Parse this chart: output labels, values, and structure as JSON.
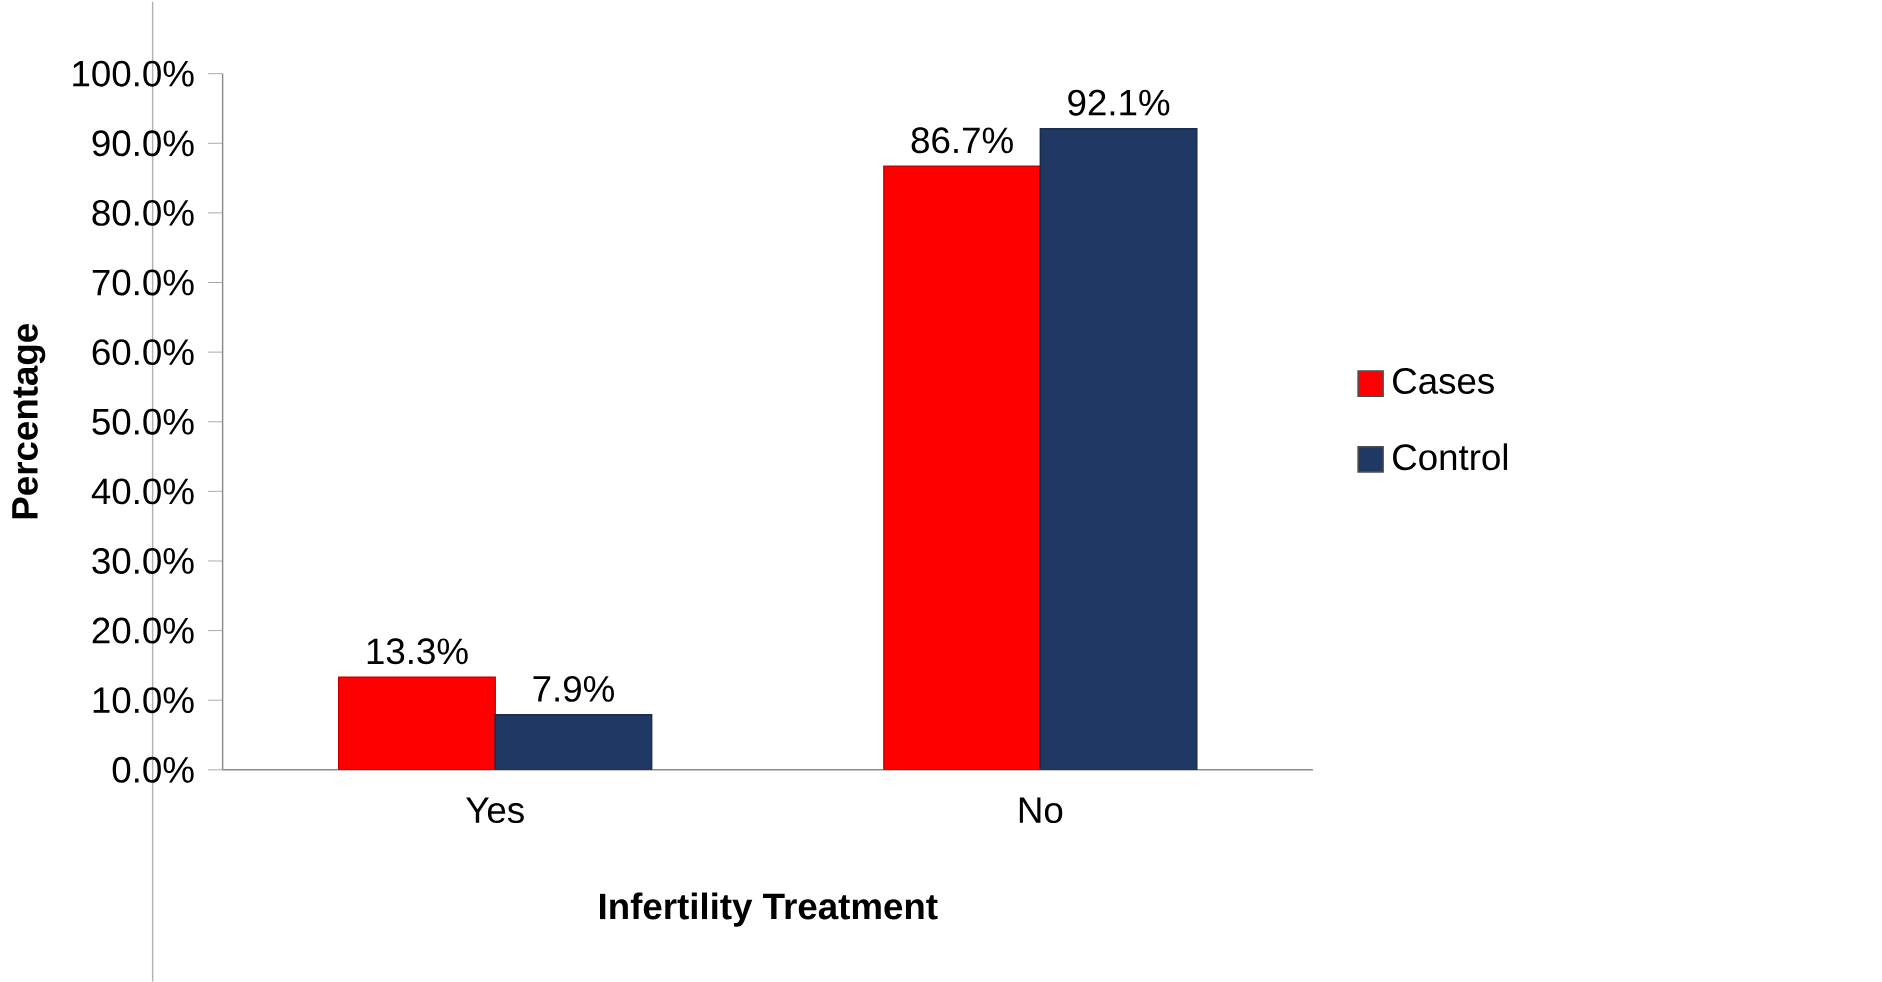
{
  "chart_data": {
    "type": "bar",
    "xlabel": "Infertility Treatment",
    "ylabel": "Percentage",
    "categories": [
      "Yes",
      "No"
    ],
    "series": [
      {
        "name": "Cases",
        "color": "#ff0000",
        "values": [
          13.3,
          86.7
        ],
        "value_labels": [
          "13.3%",
          "86.7%"
        ]
      },
      {
        "name": "Control",
        "color": "#1f3864",
        "values": [
          7.9,
          92.1
        ],
        "value_labels": [
          "7.9%",
          "92.1%"
        ]
      }
    ],
    "ylim": [
      0,
      100
    ],
    "yticks": [
      {
        "value": 0,
        "label": "0.0%"
      },
      {
        "value": 10,
        "label": "10.0%"
      },
      {
        "value": 20,
        "label": "20.0%"
      },
      {
        "value": 30,
        "label": "30.0%"
      },
      {
        "value": 40,
        "label": "40.0%"
      },
      {
        "value": 50,
        "label": "50.0%"
      },
      {
        "value": 60,
        "label": "60.0%"
      },
      {
        "value": 70,
        "label": "70.0%"
      },
      {
        "value": 80,
        "label": "80.0%"
      },
      {
        "value": 90,
        "label": "90.0%"
      },
      {
        "value": 100,
        "label": "100.0%"
      }
    ],
    "legend": "right",
    "grid": false
  }
}
